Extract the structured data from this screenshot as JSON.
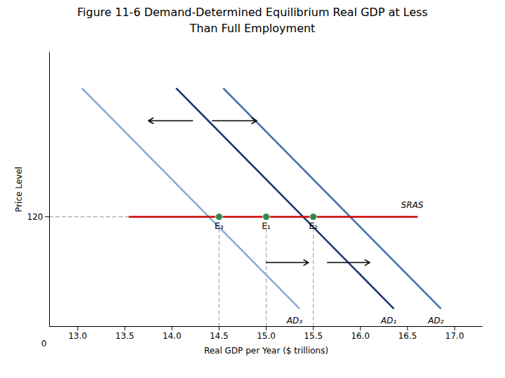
{
  "chart_data": {
    "type": "line",
    "title": "Figure 11-6  Demand-Determined Equilibrium Real GDP at Less",
    "subtitle": "Than Full Employment",
    "xlabel": "Real GDP per Year ($ trillions)",
    "ylabel": "Price Level",
    "xlim": [
      12.7,
      17.3
    ],
    "ylim": [
      96,
      156
    ],
    "xticks": [
      {
        "value": 13.0,
        "label": "13.0"
      },
      {
        "value": 13.5,
        "label": "13.5"
      },
      {
        "value": 14.0,
        "label": "14.0"
      },
      14.5,
      {
        "value": 15.0,
        "label": "15.0"
      },
      15.5,
      {
        "value": 16.0,
        "label": "16.0"
      },
      16.5,
      {
        "value": 17.0,
        "label": "17.0"
      }
    ],
    "yticks": [
      120
    ],
    "grid": false,
    "series": [
      {
        "x": [
          15.0,
          15.0
        ],
        "values": [
          96,
          120
        ],
        "color": "#aaaaaa",
        "line_style": "dashed"
      },
      {
        "x": [
          15.5,
          15.5
        ],
        "values": [
          96,
          120
        ],
        "color": "#aaaaaa",
        "line_style": "dashed"
      },
      {
        "x": [
          14.5,
          14.5
        ],
        "values": [
          96,
          120
        ],
        "color": "#aaaaaa",
        "line_style": "dashed"
      },
      {
        "x": [
          12.7,
          14.5
        ],
        "values": [
          120,
          120
        ],
        "color": "#aaaaaa",
        "line_style": "dashed"
      },
      {
        "x": [
          13.05,
          15.35
        ],
        "values": [
          148,
          100
        ],
        "color": "#8aadd4",
        "line_style": "solid"
      },
      {
        "x": [
          14.55,
          16.85
        ],
        "values": [
          148,
          100
        ],
        "color": "#4472b0",
        "line_style": "solid"
      },
      {
        "x": [
          14.05,
          16.35
        ],
        "values": [
          148,
          100
        ],
        "color": "#1a3570",
        "line_style": "solid"
      },
      {
        "x": [
          13.55,
          16.6
        ],
        "values": [
          120,
          120
        ],
        "color": "#cc0000",
        "line_style": "solid"
      },
      {
        "type": "scatter",
        "x": [
          14.5,
          15.0,
          15.5
        ],
        "values": [
          120,
          120,
          120
        ],
        "color": "#2d8a4e",
        "labels": [
          "E₃",
          "E₁",
          "E₂"
        ]
      }
    ],
    "annotations": [
      {
        "text": "SRAS",
        "x": 16.55,
        "y": 122
      },
      {
        "text": "AD₁",
        "x": 16.3,
        "y": 98
      },
      {
        "text": "AD₂",
        "x": 16.8,
        "y": 98
      },
      {
        "text": "AD₃",
        "x": 15.3,
        "y": 98
      },
      {
        "text": "0",
        "x": 12.7,
        "y": 93
      }
    ],
    "arrows": [
      {
        "x1": 14.22,
        "x2": 13.75,
        "y": 141
      },
      {
        "x1": 14.43,
        "x2": 14.9,
        "y": 141
      },
      {
        "x1": 15.0,
        "x2": 15.45,
        "y": 110
      },
      {
        "x1": 15.65,
        "x2": 16.1,
        "y": 110
      }
    ]
  }
}
